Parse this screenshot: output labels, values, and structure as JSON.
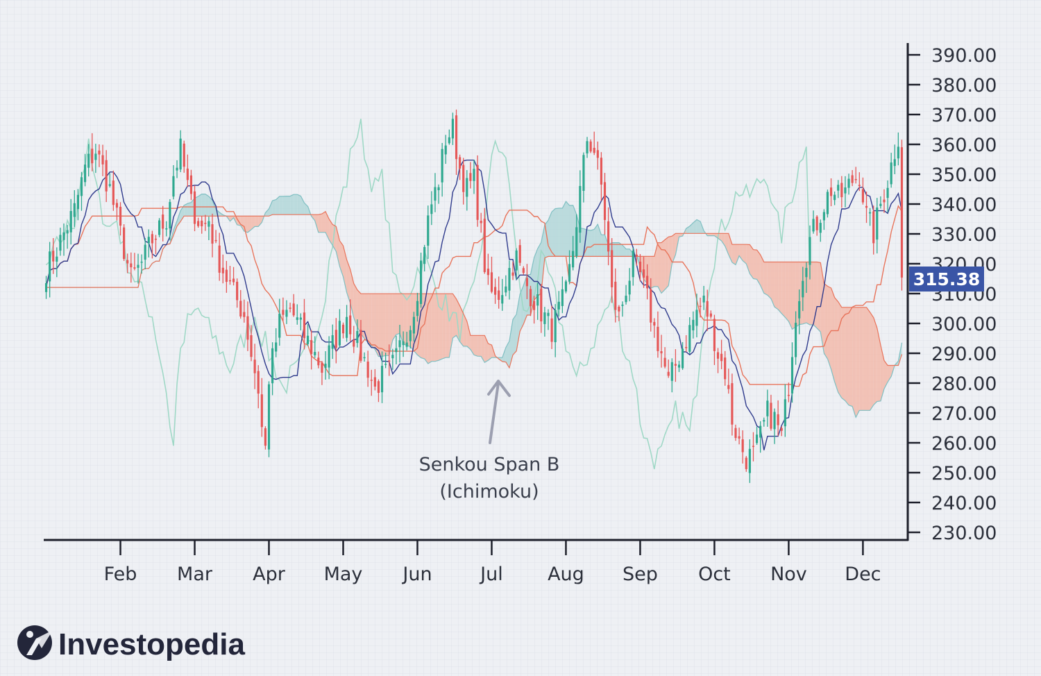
{
  "brand": {
    "name": "Investopedia"
  },
  "annotation": {
    "line1": "Senkou Span B",
    "line2": "(Ichimoku)"
  },
  "price_tag": {
    "value": "315.38",
    "color": "#3a55a6"
  },
  "colors": {
    "up": "#2ea88f",
    "down": "#e55757",
    "conversion": "#2e3a8c",
    "base": "#e8735a",
    "lagging": "#9fd8c6",
    "cloud_bull": "#a9d4d6",
    "cloud_bear": "#f3b3a2",
    "axis": "#1d1f2a",
    "grid": "#dadde5",
    "arrow": "#9c9fb0"
  },
  "chart_data": {
    "type": "candlestick",
    "title": "",
    "xlabel": "",
    "ylabel": "",
    "ylim": [
      225,
      397
    ],
    "yticks": [
      230,
      240,
      250,
      260,
      270,
      280,
      290,
      300,
      310,
      320,
      330,
      340,
      350,
      360,
      370,
      380,
      390
    ],
    "ytick_labels": [
      "230.00",
      "240.00",
      "250.00",
      "260.00",
      "270.00",
      "280.00",
      "290.00",
      "300.00",
      "310.00",
      "320.00",
      "330.00",
      "340.00",
      "350.00",
      "360.00",
      "370.00",
      "380.00",
      "390.00"
    ],
    "months": [
      "Feb",
      "Mar",
      "Apr",
      "May",
      "Jun",
      "Jul",
      "Aug",
      "Sep",
      "Oct",
      "Nov",
      "Dec"
    ],
    "month_positions": [
      21,
      42,
      63,
      84,
      105,
      126,
      147,
      168,
      189,
      210,
      231
    ],
    "n_bars": 243,
    "last_price": 315.38,
    "close_anchors": [
      [
        0,
        318
      ],
      [
        3,
        325
      ],
      [
        8,
        338
      ],
      [
        11,
        352
      ],
      [
        14,
        358
      ],
      [
        18,
        345
      ],
      [
        21,
        330
      ],
      [
        24,
        315
      ],
      [
        27,
        320
      ],
      [
        30,
        328
      ],
      [
        34,
        335
      ],
      [
        36,
        350
      ],
      [
        38,
        358
      ],
      [
        41,
        340
      ],
      [
        44,
        332
      ],
      [
        46,
        335
      ],
      [
        48,
        324
      ],
      [
        50,
        318
      ],
      [
        53,
        310
      ],
      [
        56,
        303
      ],
      [
        58,
        290
      ],
      [
        60,
        278
      ],
      [
        61,
        265
      ],
      [
        62,
        258
      ],
      [
        63,
        282
      ],
      [
        66,
        300
      ],
      [
        69,
        305
      ],
      [
        72,
        298
      ],
      [
        75,
        292
      ],
      [
        78,
        285
      ],
      [
        80,
        290
      ],
      [
        83,
        298
      ],
      [
        85,
        303
      ],
      [
        87,
        296
      ],
      [
        89,
        290
      ],
      [
        91,
        285
      ],
      [
        93,
        278
      ],
      [
        95,
        282
      ],
      [
        97,
        284
      ],
      [
        99,
        288
      ],
      [
        101,
        296
      ],
      [
        103,
        300
      ],
      [
        105,
        312
      ],
      [
        107,
        328
      ],
      [
        109,
        340
      ],
      [
        111,
        348
      ],
      [
        113,
        362
      ],
      [
        115,
        365
      ],
      [
        117,
        352
      ],
      [
        119,
        345
      ],
      [
        121,
        348
      ],
      [
        123,
        330
      ],
      [
        124,
        320
      ],
      [
        125,
        312
      ],
      [
        127,
        308
      ],
      [
        129,
        312
      ],
      [
        131,
        318
      ],
      [
        133,
        322
      ],
      [
        135,
        315
      ],
      [
        137,
        310
      ],
      [
        139,
        306
      ],
      [
        141,
        302
      ],
      [
        143,
        298
      ],
      [
        145,
        304
      ],
      [
        147,
        310
      ],
      [
        149,
        325
      ],
      [
        151,
        344
      ],
      [
        153,
        362
      ],
      [
        155,
        358
      ],
      [
        157,
        346
      ],
      [
        158,
        336
      ],
      [
        160,
        310
      ],
      [
        162,
        302
      ],
      [
        164,
        312
      ],
      [
        166,
        320
      ],
      [
        168,
        316
      ],
      [
        170,
        308
      ],
      [
        172,
        298
      ],
      [
        174,
        290
      ],
      [
        176,
        280
      ],
      [
        178,
        286
      ],
      [
        180,
        292
      ],
      [
        182,
        298
      ],
      [
        184,
        304
      ],
      [
        186,
        307
      ],
      [
        188,
        300
      ],
      [
        190,
        290
      ],
      [
        192,
        284
      ],
      [
        194,
        268
      ],
      [
        196,
        260
      ],
      [
        198,
        255
      ],
      [
        200,
        256
      ],
      [
        202,
        262
      ],
      [
        204,
        270
      ],
      [
        206,
        268
      ],
      [
        208,
        262
      ],
      [
        210,
        280
      ],
      [
        212,
        304
      ],
      [
        214,
        318
      ],
      [
        216,
        328
      ],
      [
        218,
        334
      ],
      [
        220,
        340
      ],
      [
        222,
        345
      ],
      [
        224,
        342
      ],
      [
        226,
        344
      ],
      [
        228,
        348
      ],
      [
        230,
        350
      ],
      [
        232,
        336
      ],
      [
        234,
        330
      ],
      [
        236,
        340
      ],
      [
        238,
        348
      ],
      [
        240,
        358
      ],
      [
        242,
        368
      ],
      [
        243,
        364
      ],
      [
        245,
        352
      ],
      [
        246,
        335
      ],
      [
        247,
        318
      ],
      [
        248,
        315.38
      ]
    ],
    "series": [
      {
        "name": "",
        "kind": "candles"
      },
      {
        "name": "",
        "kind": "conversion_line",
        "period": 9
      },
      {
        "name": "",
        "kind": "base_line",
        "period": 26
      },
      {
        "name": "Senkou Span B",
        "kind": "leading_span_b",
        "period": 52,
        "shift": 26
      },
      {
        "name": "",
        "kind": "leading_span_a",
        "shift": 26
      },
      {
        "name": "",
        "kind": "lagging_span",
        "shift": -26
      }
    ]
  }
}
